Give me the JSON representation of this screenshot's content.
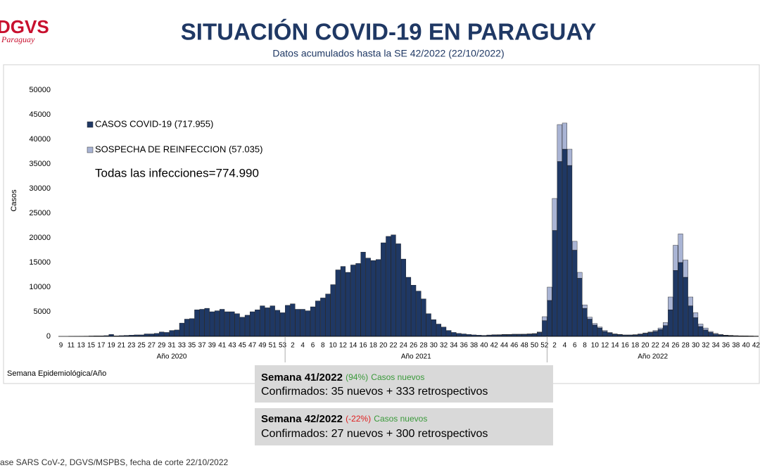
{
  "header": {
    "logo": "DGVS",
    "logo_sub": "Paraguay",
    "title": "SITUACIÓN COVID-19 EN PARAGUAY",
    "subtitle": "Datos acumulados hasta la SE 42/2022 (22/10/2022)"
  },
  "chart_data": {
    "type": "stacked_bar",
    "y_label": "Casos",
    "x_label": "Semana Epidemiológica/Año",
    "groups": [
      "Año 2020",
      "Año 2021",
      "Año 2022"
    ],
    "note": "Todas las infecciones=774.990",
    "legend": "upper left",
    "ylim": [
      0,
      50000
    ],
    "yticks": [
      0,
      5000,
      10000,
      15000,
      20000,
      25000,
      30000,
      35000,
      40000,
      45000,
      50000
    ],
    "categories": [
      "9",
      null,
      "11",
      null,
      "13",
      null,
      "15",
      null,
      "17",
      null,
      "19",
      null,
      "21",
      null,
      "23",
      null,
      "25",
      null,
      "27",
      null,
      "29",
      null,
      "31",
      null,
      "33",
      null,
      "35",
      null,
      "37",
      null,
      "39",
      null,
      "41",
      null,
      "43",
      null,
      "45",
      null,
      "47",
      null,
      "49",
      null,
      "51",
      null,
      "53",
      null,
      "2",
      null,
      "4",
      null,
      "6",
      null,
      "8",
      null,
      "10",
      null,
      "12",
      null,
      "14",
      null,
      "16",
      null,
      "18",
      null,
      "20",
      null,
      "22",
      null,
      "24",
      null,
      "26",
      null,
      "28",
      null,
      "30",
      null,
      "32",
      null,
      "34",
      null,
      "36",
      null,
      "38",
      null,
      "40",
      null,
      "42",
      null,
      "44",
      null,
      "46",
      null,
      "48",
      null,
      "50",
      null,
      "52",
      null,
      "2",
      null,
      "4",
      null,
      "6",
      null,
      "8",
      null,
      "10",
      null,
      "12",
      null,
      "14",
      null,
      "16",
      null,
      "18",
      null,
      "20",
      null,
      "22",
      null,
      "24",
      null,
      "26",
      null,
      "28",
      null,
      "30",
      null,
      "32",
      null,
      "34",
      null,
      "36",
      null,
      "38",
      null,
      "40",
      null,
      "42"
    ],
    "series": [
      {
        "name": "CASOS COVID-19 (717.955)",
        "color": "#1f3864",
        "values": [
          0,
          0,
          10,
          20,
          30,
          50,
          80,
          100,
          100,
          150,
          400,
          100,
          150,
          200,
          250,
          300,
          300,
          500,
          500,
          600,
          900,
          800,
          1200,
          1300,
          2700,
          3500,
          3600,
          5400,
          5500,
          5700,
          5000,
          5200,
          5500,
          5000,
          5000,
          4600,
          3900,
          4300,
          5000,
          5400,
          6200,
          5800,
          6200,
          5300,
          4800,
          6300,
          6600,
          5500,
          5500,
          5200,
          6000,
          7200,
          7800,
          8600,
          10500,
          13500,
          14200,
          13000,
          14500,
          14800,
          17100,
          15900,
          15400,
          15600,
          19000,
          20300,
          20600,
          18800,
          15700,
          12000,
          10400,
          9200,
          7600,
          4600,
          3400,
          2500,
          1900,
          1200,
          800,
          600,
          500,
          400,
          300,
          250,
          200,
          250,
          300,
          300,
          350,
          350,
          400,
          400,
          400,
          450,
          500,
          800,
          3200,
          7300,
          21500,
          35500,
          38000,
          34700,
          17500,
          11800,
          5700,
          3500,
          2300,
          1700,
          1000,
          700,
          450,
          350,
          250,
          250,
          300,
          420,
          600,
          800,
          1000,
          1400,
          2200,
          5400,
          13400,
          15000,
          12000,
          6200,
          3800,
          2000,
          1300,
          800,
          450,
          300,
          200,
          150,
          120,
          100,
          85,
          70,
          50
        ]
      },
      {
        "name": "SOSPECHA DE REINFECCION (57.035)",
        "color": "#a9b4d4",
        "values": [
          0,
          0,
          0,
          0,
          0,
          0,
          0,
          0,
          0,
          0,
          0,
          0,
          0,
          0,
          0,
          0,
          0,
          0,
          0,
          0,
          0,
          0,
          0,
          0,
          0,
          0,
          0,
          0,
          0,
          0,
          0,
          0,
          0,
          0,
          0,
          0,
          0,
          0,
          0,
          0,
          0,
          0,
          0,
          0,
          0,
          0,
          0,
          0,
          0,
          0,
          0,
          0,
          0,
          0,
          0,
          0,
          0,
          0,
          0,
          0,
          0,
          0,
          0,
          0,
          0,
          0,
          0,
          0,
          0,
          0,
          0,
          0,
          0,
          0,
          0,
          0,
          0,
          0,
          0,
          0,
          0,
          0,
          0,
          0,
          0,
          30,
          30,
          40,
          40,
          50,
          50,
          50,
          60,
          60,
          80,
          100,
          800,
          2700,
          6500,
          7500,
          5300,
          3300,
          1800,
          1200,
          700,
          400,
          300,
          200,
          200,
          100,
          50,
          50,
          50,
          50,
          50,
          80,
          100,
          100,
          200,
          300,
          600,
          2600,
          5100,
          5800,
          3500,
          1800,
          1000,
          500,
          400,
          200,
          150,
          100,
          50,
          50,
          30,
          20,
          15,
          10,
          10
        ]
      }
    ]
  },
  "annotations": [
    {
      "title": "Semana 41/2022",
      "pct": "(94%)",
      "pct_color": "#3a9a3a",
      "suffix": "Casos nuevos",
      "detail": "Confirmados: 35 nuevos + 333 retrospectivos"
    },
    {
      "title": "Semana 42/2022",
      "pct": "(-22%)",
      "pct_color": "#e02020",
      "suffix": "Casos nuevos",
      "detail": "Confirmados: 27 nuevos + 300 retrospectivos"
    }
  ],
  "footer": {
    "source": "ase SARS CoV-2, DGVS/MSPBS, fecha de corte 22/10/2022"
  }
}
